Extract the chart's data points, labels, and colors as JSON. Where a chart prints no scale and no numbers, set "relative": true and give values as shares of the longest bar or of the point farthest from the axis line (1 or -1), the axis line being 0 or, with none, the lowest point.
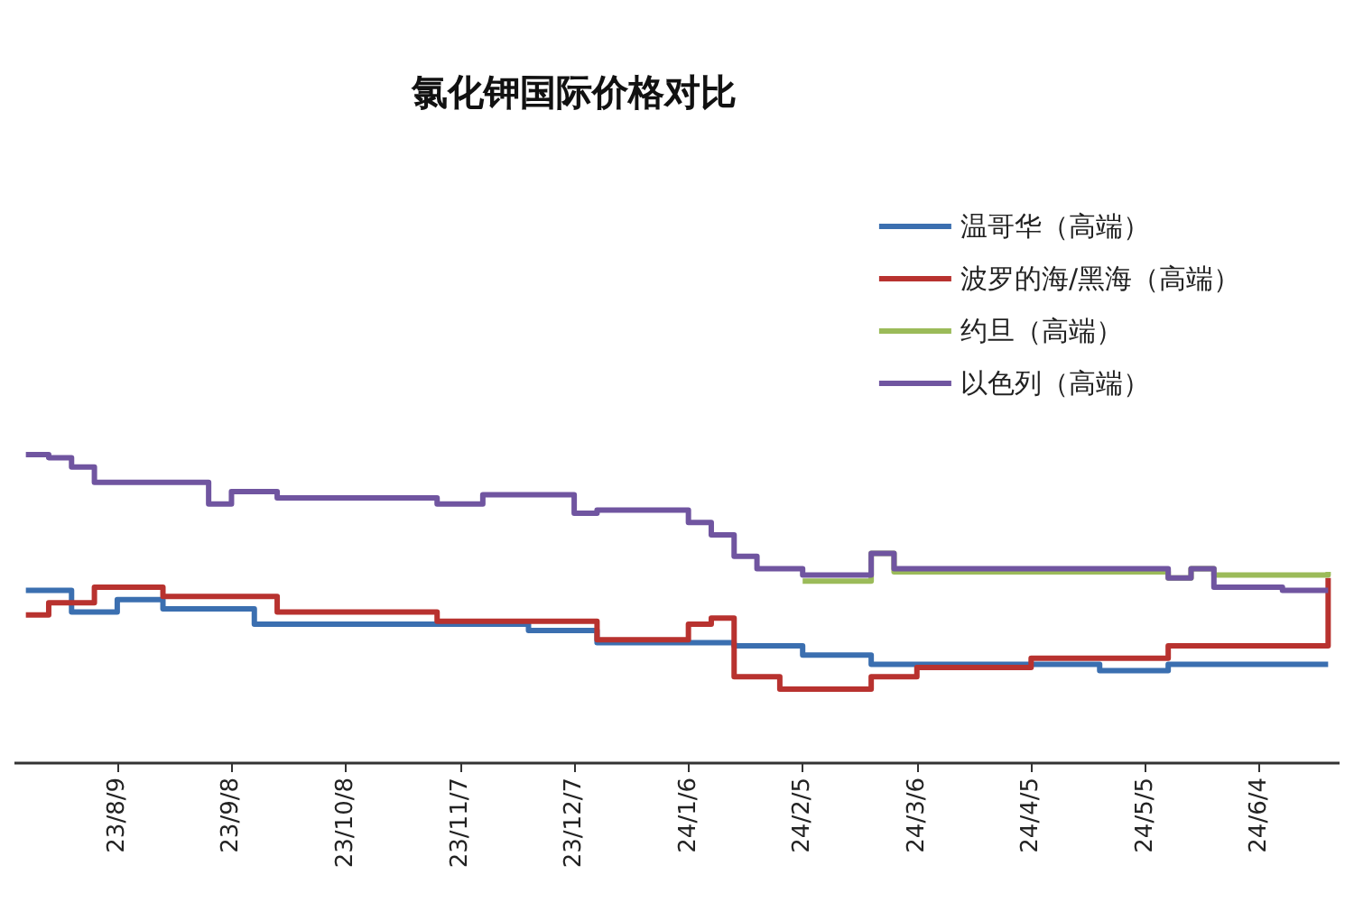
{
  "chart_data": {
    "type": "step",
    "title": "氯化钾国际价格对比",
    "relative": true,
    "legend": "top right",
    "grid": false,
    "categories": [
      null,
      null,
      null,
      null,
      "23/8/9",
      null,
      null,
      null,
      null,
      "23/9/8",
      null,
      null,
      null,
      null,
      "23/10/8",
      null,
      null,
      null,
      null,
      "23/11/7",
      null,
      null,
      null,
      null,
      "23/12/7",
      null,
      null,
      null,
      null,
      "24/1/6",
      null,
      null,
      null,
      null,
      "24/2/5",
      null,
      null,
      null,
      null,
      "24/3/6",
      null,
      null,
      null,
      null,
      "24/4/5",
      null,
      null,
      null,
      null,
      "24/5/5",
      null,
      null,
      null,
      null,
      "24/6/4",
      null,
      null,
      null
    ],
    "series": [
      {
        "name": "温哥华（高端）",
        "color": "#3b6fb0",
        "values": [
          0.56,
          0.56,
          0.49,
          0.49,
          0.53,
          0.53,
          0.5,
          0.5,
          0.5,
          0.5,
          0.45,
          0.45,
          0.45,
          0.45,
          0.45,
          0.45,
          0.45,
          0.45,
          0.45,
          0.45,
          0.45,
          0.45,
          0.43,
          0.43,
          0.43,
          0.39,
          0.39,
          0.39,
          0.39,
          0.39,
          0.39,
          0.38,
          0.38,
          0.38,
          0.35,
          0.35,
          0.35,
          0.32,
          0.32,
          0.32,
          0.32,
          0.32,
          0.32,
          0.32,
          0.32,
          0.32,
          0.32,
          0.3,
          0.3,
          0.3,
          0.32,
          0.32,
          0.32,
          0.32,
          0.32,
          0.32,
          0.32,
          0.32
        ]
      },
      {
        "name": "波罗的海/黑海（高端）",
        "color": "#b8322f",
        "values": [
          0.48,
          0.52,
          0.52,
          0.57,
          0.57,
          0.57,
          0.54,
          0.54,
          0.54,
          0.54,
          0.54,
          0.49,
          0.49,
          0.49,
          0.49,
          0.49,
          0.49,
          0.49,
          0.46,
          0.46,
          0.46,
          0.46,
          0.46,
          0.46,
          0.46,
          0.4,
          0.4,
          0.4,
          0.4,
          0.45,
          0.47,
          0.28,
          0.28,
          0.24,
          0.24,
          0.24,
          0.24,
          0.28,
          0.28,
          0.31,
          0.31,
          0.31,
          0.31,
          0.31,
          0.34,
          0.34,
          0.34,
          0.34,
          0.34,
          0.34,
          0.38,
          0.38,
          0.38,
          0.38,
          0.38,
          0.38,
          0.38,
          0.6
        ]
      },
      {
        "name": "约旦（高端）",
        "color": "#9bbb59",
        "values": [
          null,
          null,
          null,
          null,
          null,
          null,
          null,
          null,
          null,
          null,
          null,
          null,
          null,
          null,
          null,
          null,
          null,
          null,
          null,
          null,
          null,
          null,
          null,
          null,
          null,
          null,
          null,
          null,
          null,
          null,
          null,
          null,
          null,
          null,
          0.59,
          0.59,
          0.59,
          0.68,
          0.62,
          0.62,
          0.62,
          0.62,
          0.62,
          0.62,
          0.62,
          0.62,
          0.62,
          0.62,
          0.62,
          0.62,
          0.6,
          0.63,
          0.61,
          0.61,
          0.61,
          0.61,
          0.61,
          0.62
        ]
      },
      {
        "name": "以色列（高端）",
        "color": "#7055a0",
        "values": [
          1.0,
          0.99,
          0.96,
          0.91,
          0.91,
          0.91,
          0.91,
          0.91,
          0.84,
          0.88,
          0.88,
          0.86,
          0.86,
          0.86,
          0.86,
          0.86,
          0.86,
          0.86,
          0.84,
          0.84,
          0.87,
          0.87,
          0.87,
          0.87,
          0.81,
          0.82,
          0.82,
          0.82,
          0.82,
          0.78,
          0.74,
          0.67,
          0.63,
          0.63,
          0.61,
          0.61,
          0.61,
          0.68,
          0.63,
          0.63,
          0.63,
          0.63,
          0.63,
          0.63,
          0.63,
          0.63,
          0.63,
          0.63,
          0.63,
          0.63,
          0.6,
          0.63,
          0.57,
          0.57,
          0.57,
          0.56,
          0.56,
          0.56
        ]
      }
    ]
  }
}
